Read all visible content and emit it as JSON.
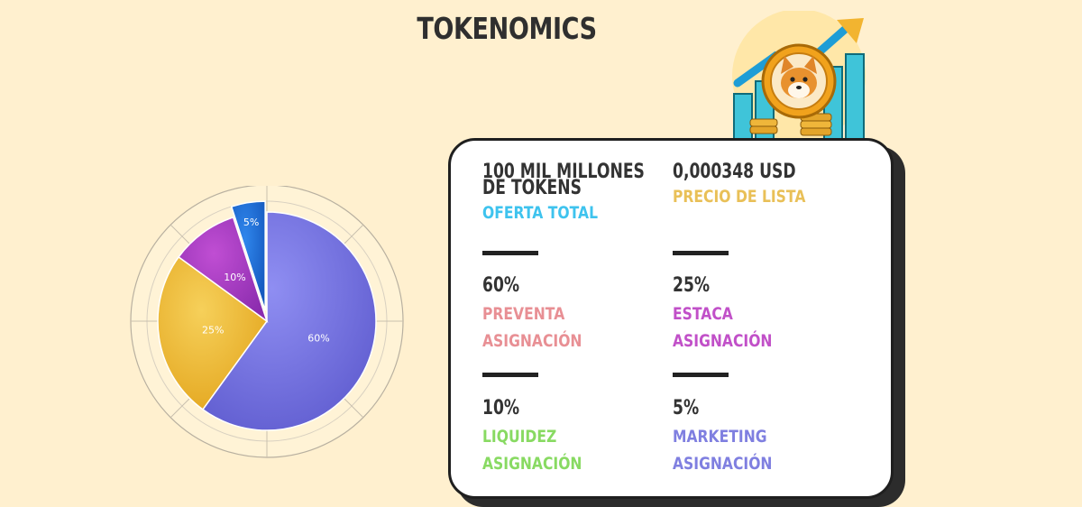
{
  "title": "TOKENOMICS",
  "card": {
    "supply": {
      "value": "100 MIL MILLONES DE TOKENS",
      "label": "OFERTA TOTAL",
      "color": "#3ec3ee"
    },
    "price": {
      "value": "0,000348 USD",
      "label": "PRECIO DE LISTA",
      "color": "#e9c058"
    },
    "presale": {
      "value": "60%",
      "label1": "PREVENTA",
      "label2": "ASIGNACIÓN",
      "color": "#e88f94"
    },
    "stake": {
      "value": "25%",
      "label1": "ESTACA",
      "label2": "ASIGNACIÓN",
      "color": "#c150c8"
    },
    "liquidity": {
      "value": "10%",
      "label1": "LIQUIDEZ",
      "label2": "ASIGNACIÓN",
      "color": "#88da62"
    },
    "marketing": {
      "value": "5%",
      "label1": "MARKETING",
      "label2": "ASIGNACIÓN",
      "color": "#7f7fe0"
    }
  },
  "chart_data": {
    "type": "pie",
    "title": "",
    "slices": [
      {
        "label": "60%",
        "value": 60,
        "color": "#7a78e6"
      },
      {
        "label": "25%",
        "value": 25,
        "color": "#f0bd33"
      },
      {
        "label": "10%",
        "value": 10,
        "color": "#a93dc3"
      },
      {
        "label": "5%",
        "value": 5,
        "color": "#1e6fd6",
        "exploded": true
      }
    ],
    "start_angle_deg": 0,
    "direction": "clockwise",
    "legend": "none"
  }
}
